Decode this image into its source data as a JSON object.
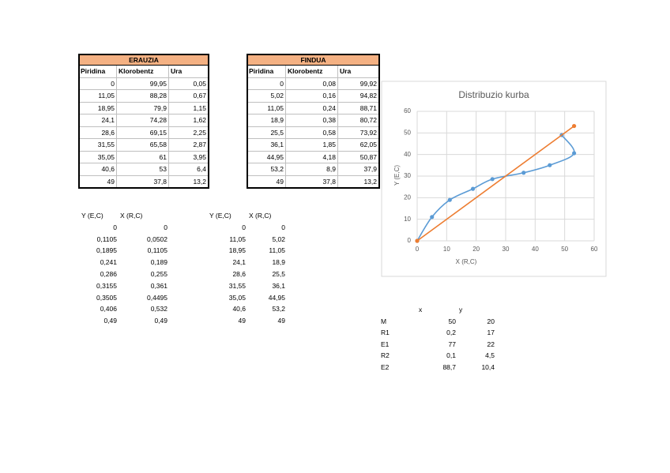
{
  "tables": {
    "erauzia": {
      "title": "ERAUZIA",
      "headers": [
        "Piridina",
        "Klorobentz",
        "Ura"
      ],
      "rows": [
        [
          "0",
          "99,95",
          "0,05"
        ],
        [
          "11,05",
          "88,28",
          "0,67"
        ],
        [
          "18,95",
          "79,9",
          "1,15"
        ],
        [
          "24,1",
          "74,28",
          "1,62"
        ],
        [
          "28,6",
          "69,15",
          "2,25"
        ],
        [
          "31,55",
          "65,58",
          "2,87"
        ],
        [
          "35,05",
          "61",
          "3,95"
        ],
        [
          "40,6",
          "53",
          "6,4"
        ],
        [
          "49",
          "37,8",
          "13,2"
        ]
      ]
    },
    "findua": {
      "title": "FINDUA",
      "headers": [
        "Piridina",
        "Klorobentz",
        "Ura"
      ],
      "rows": [
        [
          "0",
          "0,08",
          "99,92"
        ],
        [
          "5,02",
          "0,16",
          "94,82"
        ],
        [
          "11,05",
          "0,24",
          "88,71"
        ],
        [
          "18,9",
          "0,38",
          "80,72"
        ],
        [
          "25,5",
          "0,58",
          "73,92"
        ],
        [
          "36,1",
          "1,85",
          "62,05"
        ],
        [
          "44,95",
          "4,18",
          "50,87"
        ],
        [
          "53,2",
          "8,9",
          "37,9"
        ],
        [
          "49",
          "37,8",
          "13,2"
        ]
      ]
    }
  },
  "lists": {
    "fractions": {
      "headers": [
        "Y (E,C)",
        "X (R,C)"
      ],
      "rows": [
        [
          "0",
          "0"
        ],
        [
          "0,1105",
          "0,0502"
        ],
        [
          "0,1895",
          "0,1105"
        ],
        [
          "0,241",
          "0,189"
        ],
        [
          "0,286",
          "0,255"
        ],
        [
          "0,3155",
          "0,361"
        ],
        [
          "0,3505",
          "0,4495"
        ],
        [
          "0,406",
          "0,532"
        ],
        [
          "0,49",
          "0,49"
        ]
      ]
    },
    "percent": {
      "headers": [
        "Y (E,C)",
        "X (R,C)"
      ],
      "rows": [
        [
          "0",
          "0"
        ],
        [
          "11,05",
          "5,02"
        ],
        [
          "18,95",
          "11,05"
        ],
        [
          "24,1",
          "18,9"
        ],
        [
          "28,6",
          "25,5"
        ],
        [
          "31,55",
          "36,1"
        ],
        [
          "35,05",
          "44,95"
        ],
        [
          "40,6",
          "53,2"
        ],
        [
          "49",
          "49"
        ]
      ]
    },
    "points": {
      "headers": [
        "x",
        "y"
      ],
      "rows": [
        [
          "M",
          "50",
          "20"
        ],
        [
          "R1",
          "0,2",
          "17"
        ],
        [
          "E1",
          "77",
          "22"
        ],
        [
          "R2",
          "0,1",
          "4,5"
        ],
        [
          "E2",
          "88,7",
          "10,4"
        ]
      ]
    }
  },
  "chart_data": {
    "type": "scatter",
    "title": "Distribuzio kurba",
    "x_label": "X (R,C)",
    "y_label": "Y (E,C)",
    "xlim": [
      0,
      60
    ],
    "ylim": [
      0,
      60
    ],
    "xticks": [
      0,
      10,
      20,
      30,
      40,
      50,
      60
    ],
    "yticks": [
      0,
      10,
      20,
      30,
      40,
      50,
      60
    ],
    "grid": true,
    "series": [
      {
        "color": "#5b9bd5",
        "smooth": true,
        "x": [
          0,
          5.02,
          11.05,
          18.9,
          25.5,
          36.1,
          44.95,
          53.2,
          49
        ],
        "values": [
          0,
          11.05,
          18.95,
          24.1,
          28.6,
          31.55,
          35.05,
          40.6,
          49
        ]
      },
      {
        "color": "#ed7d31",
        "smooth": false,
        "x": [
          0,
          53.2
        ],
        "values": [
          0,
          53.2
        ]
      }
    ]
  }
}
